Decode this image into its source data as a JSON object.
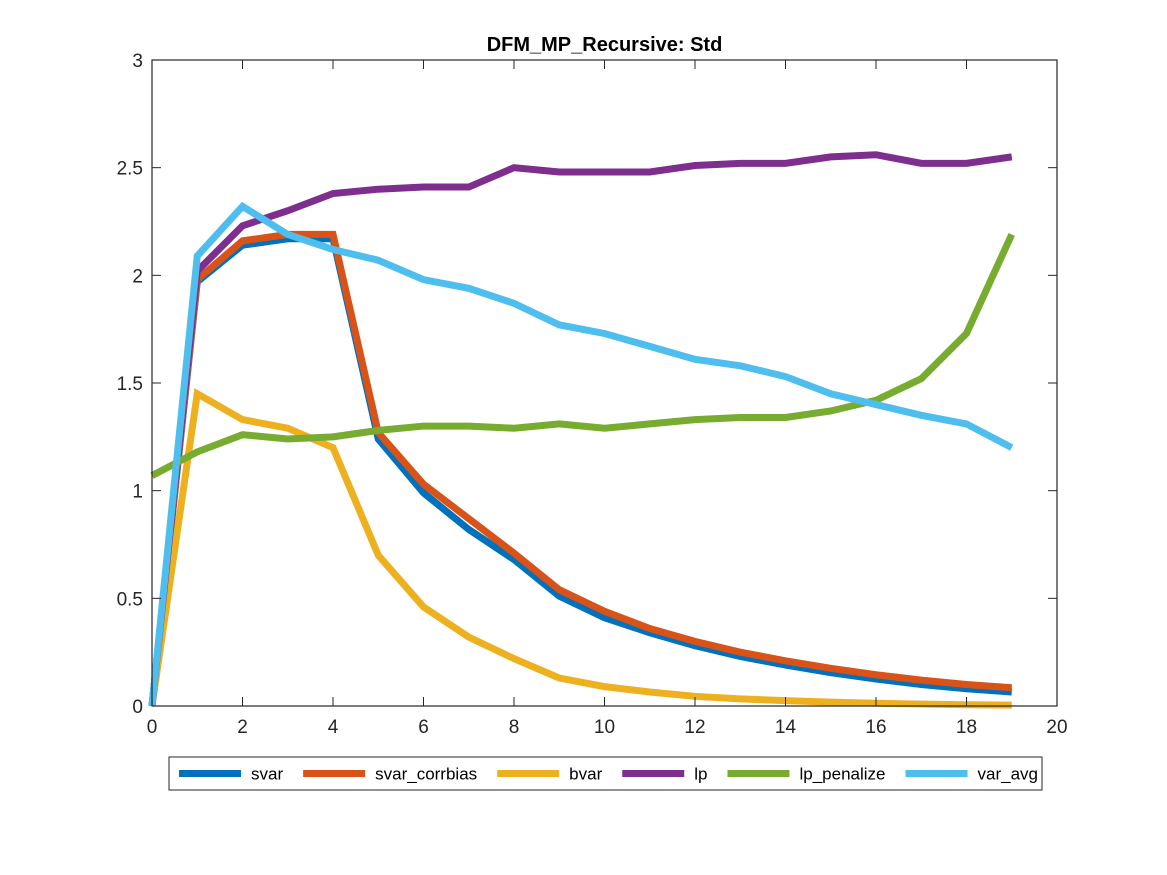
{
  "chart_data": {
    "type": "line",
    "title": "DFM_MP_Recursive: Std",
    "xlabel": "",
    "ylabel": "",
    "xlim": [
      0,
      20
    ],
    "ylim": [
      0,
      3
    ],
    "xticks": [
      0,
      2,
      4,
      6,
      8,
      10,
      12,
      14,
      16,
      18,
      20
    ],
    "yticks": [
      0,
      0.5,
      1,
      1.5,
      2,
      2.5,
      3
    ],
    "ytick_labels": [
      "0",
      "0.5",
      "1",
      "1.5",
      "2",
      "2.5",
      "3"
    ],
    "grid": false,
    "legend_position": "bottom",
    "x": [
      0,
      1,
      2,
      3,
      4,
      5,
      6,
      7,
      8,
      9,
      10,
      11,
      12,
      13,
      14,
      15,
      16,
      17,
      18,
      19
    ],
    "series": [
      {
        "name": "svar",
        "color": "#0072BD",
        "values": [
          0.0,
          1.97,
          2.14,
          2.17,
          2.17,
          1.24,
          0.99,
          0.82,
          0.68,
          0.51,
          0.41,
          0.34,
          0.28,
          0.23,
          0.19,
          0.155,
          0.125,
          0.1,
          0.08,
          0.065
        ]
      },
      {
        "name": "svar_corrbias",
        "color": "#D95319",
        "values": [
          0.0,
          1.98,
          2.16,
          2.19,
          2.19,
          1.27,
          1.03,
          0.87,
          0.71,
          0.54,
          0.44,
          0.36,
          0.3,
          0.25,
          0.21,
          0.175,
          0.145,
          0.12,
          0.1,
          0.085
        ]
      },
      {
        "name": "bvar",
        "color": "#EDB120",
        "values": [
          0.0,
          1.45,
          1.33,
          1.29,
          1.2,
          0.7,
          0.46,
          0.32,
          0.22,
          0.13,
          0.09,
          0.065,
          0.045,
          0.033,
          0.025,
          0.018,
          0.013,
          0.009,
          0.006,
          0.004
        ]
      },
      {
        "name": "lp",
        "color": "#7E2F8E",
        "values": [
          0.0,
          2.02,
          2.23,
          2.3,
          2.38,
          2.4,
          2.41,
          2.41,
          2.5,
          2.48,
          2.48,
          2.48,
          2.51,
          2.52,
          2.52,
          2.55,
          2.56,
          2.52,
          2.52,
          2.55
        ]
      },
      {
        "name": "lp_penalize",
        "color": "#77AC30",
        "values": [
          1.07,
          1.18,
          1.26,
          1.24,
          1.25,
          1.28,
          1.3,
          1.3,
          1.29,
          1.31,
          1.29,
          1.31,
          1.33,
          1.34,
          1.34,
          1.37,
          1.42,
          1.52,
          1.73,
          2.19
        ]
      },
      {
        "name": "var_avg",
        "color": "#4DBEEE",
        "values": [
          0.0,
          2.09,
          2.32,
          2.19,
          2.12,
          2.07,
          1.98,
          1.94,
          1.87,
          1.77,
          1.73,
          1.67,
          1.61,
          1.58,
          1.53,
          1.45,
          1.4,
          1.35,
          1.31,
          1.2
        ]
      }
    ]
  }
}
